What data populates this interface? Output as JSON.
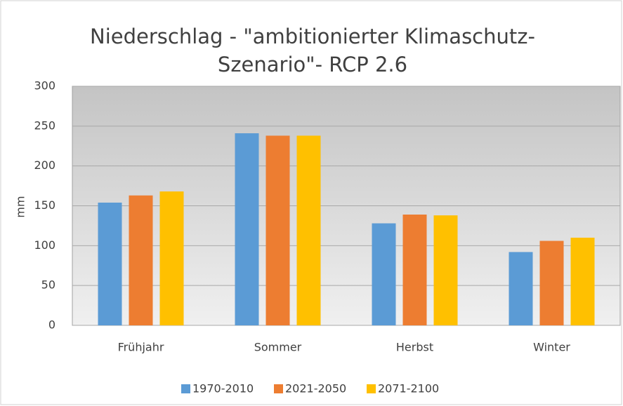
{
  "chart_data": {
    "type": "bar",
    "title": "Niederschlag - \"ambitionierter Klimaschutz-Szenario\"- RCP 2.6",
    "ylabel": "mm",
    "categories": [
      "Frühjahr",
      "Sommer",
      "Herbst",
      "Winter"
    ],
    "series": [
      {
        "name": "1970-2010",
        "color": "#5b9bd5",
        "values": [
          154,
          241,
          128,
          92
        ]
      },
      {
        "name": "2021-2050",
        "color": "#ed7d31",
        "values": [
          163,
          238,
          139,
          106
        ]
      },
      {
        "name": "2071-2100",
        "color": "#ffc000",
        "values": [
          168,
          238,
          138,
          110
        ]
      }
    ],
    "ylim": [
      0,
      300
    ],
    "yticks": [
      0,
      50,
      100,
      150,
      200,
      250,
      300
    ],
    "grid": true,
    "legend": "bottom"
  }
}
